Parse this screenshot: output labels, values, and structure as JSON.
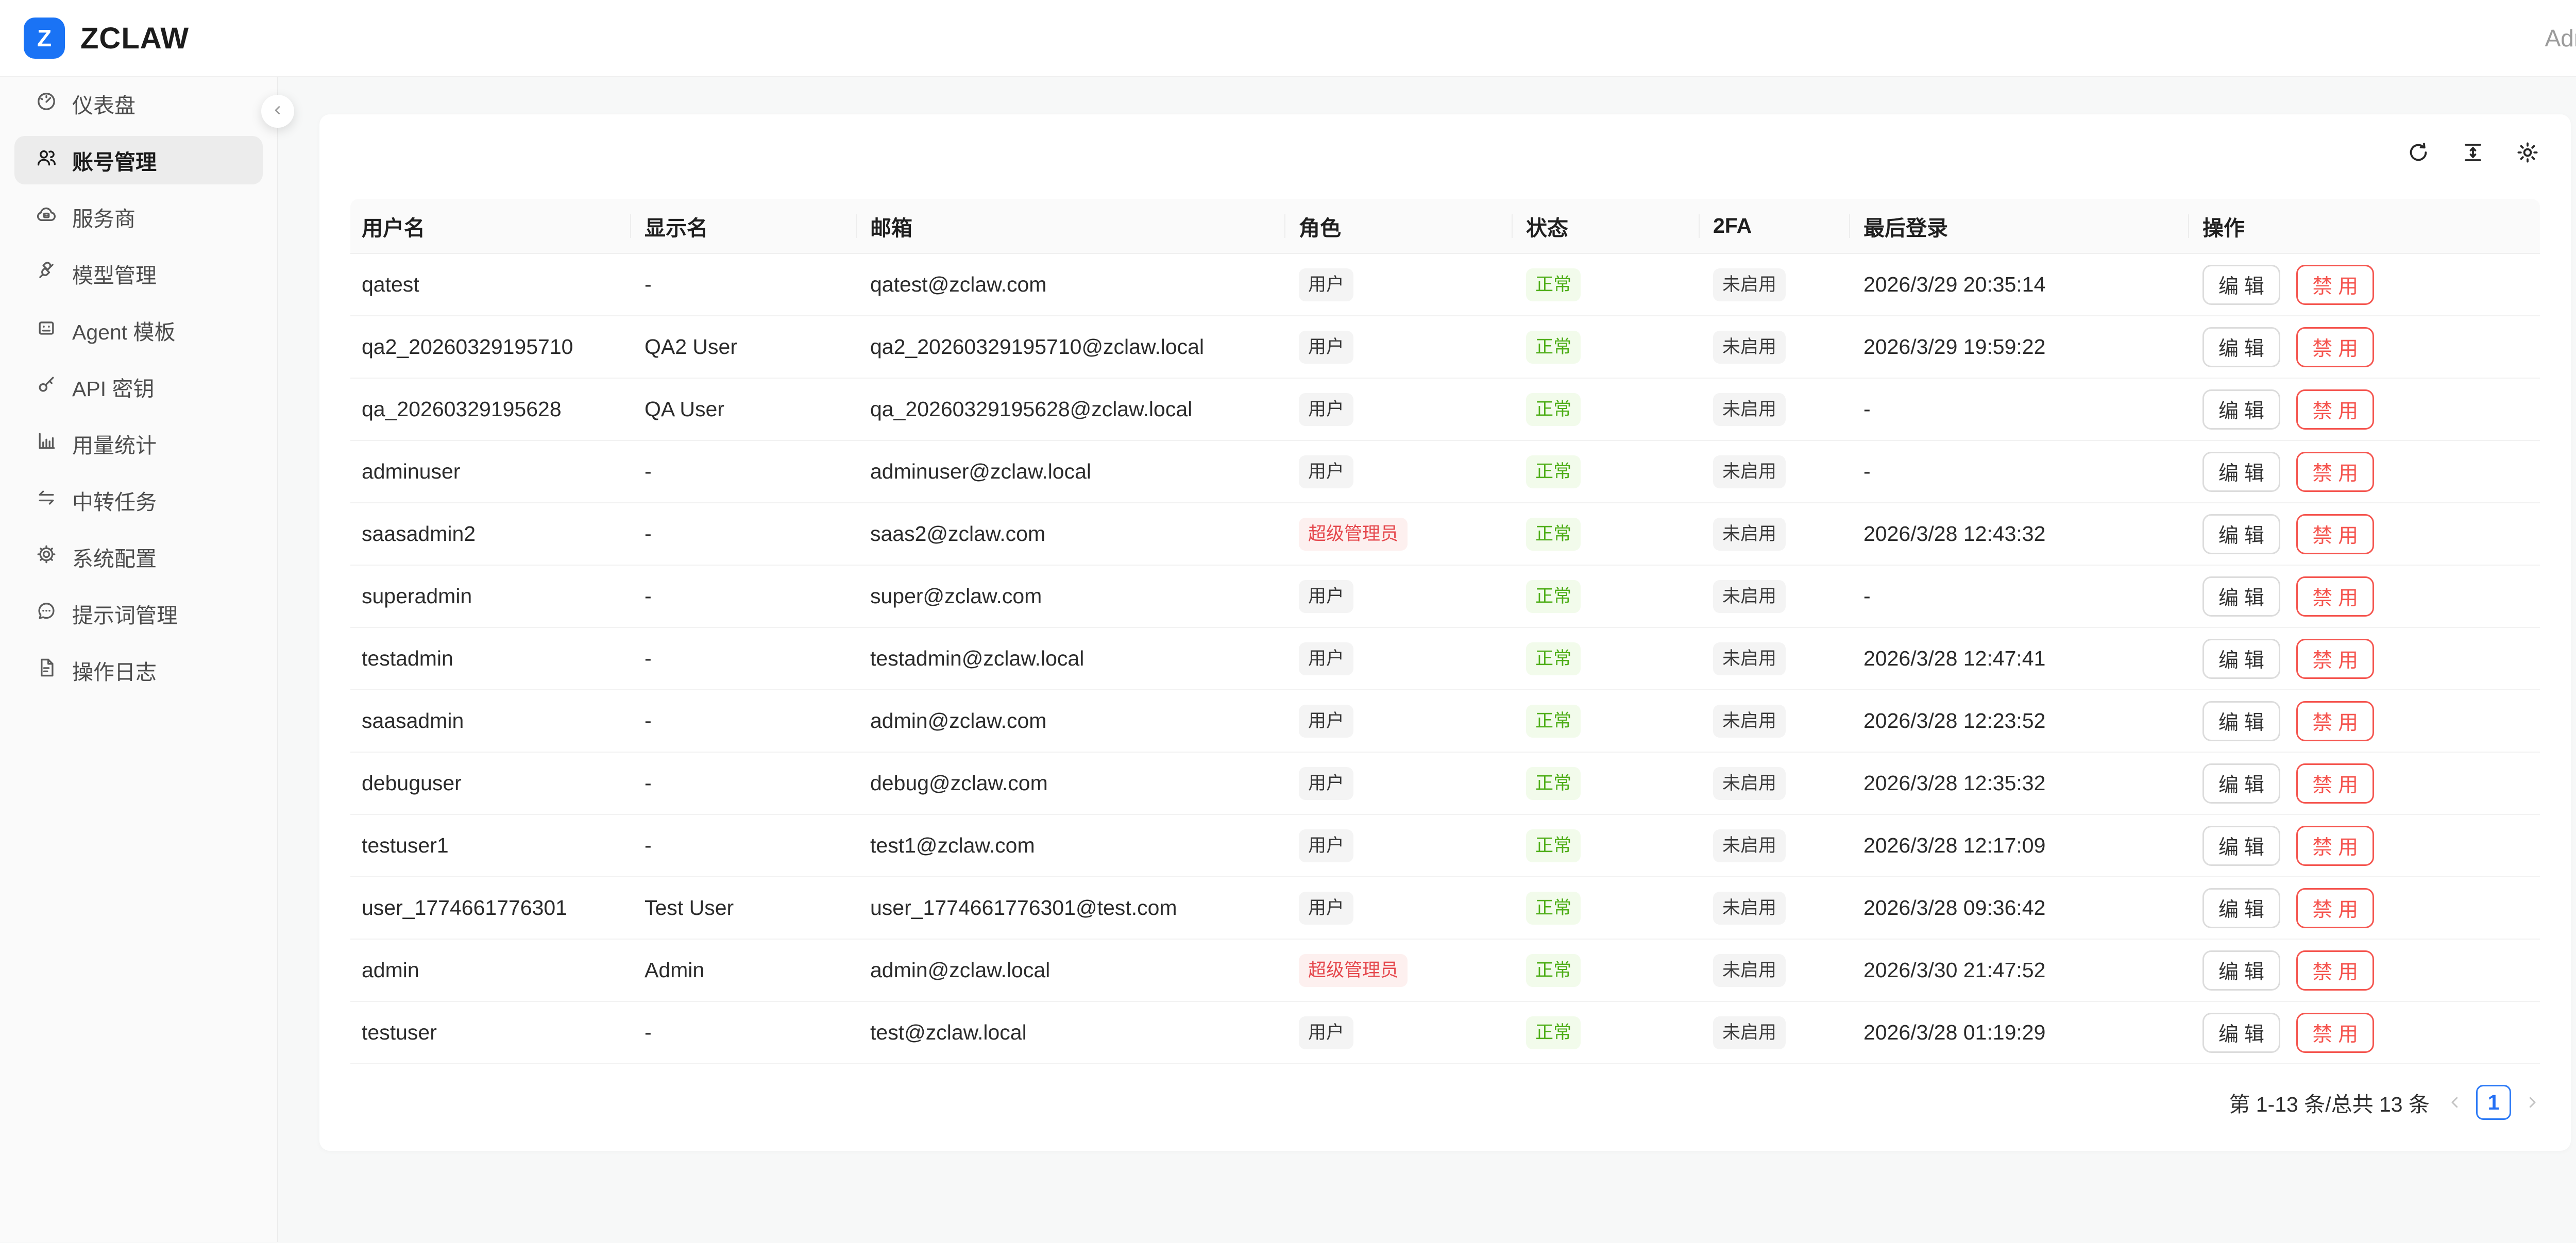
{
  "brand": {
    "logo_letter": "Z",
    "title": "ZCLAW"
  },
  "topbar": {
    "user_label": "Admin"
  },
  "sidebar": {
    "items": [
      {
        "label": "仪表盘",
        "icon": "dashboard-icon",
        "active": false
      },
      {
        "label": "账号管理",
        "icon": "users-icon",
        "active": true
      },
      {
        "label": "服务商",
        "icon": "cloud-icon",
        "active": false
      },
      {
        "label": "模型管理",
        "icon": "plug-icon",
        "active": false
      },
      {
        "label": "Agent 模板",
        "icon": "robot-icon",
        "active": false
      },
      {
        "label": "API 密钥",
        "icon": "key-icon",
        "active": false
      },
      {
        "label": "用量统计",
        "icon": "bar-chart-icon",
        "active": false
      },
      {
        "label": "中转任务",
        "icon": "swap-icon",
        "active": false
      },
      {
        "label": "系统配置",
        "icon": "gear-icon",
        "active": false
      },
      {
        "label": "提示词管理",
        "icon": "comment-icon",
        "active": false
      },
      {
        "label": "操作日志",
        "icon": "file-icon",
        "active": false
      }
    ]
  },
  "toolbar_icons": [
    "reload-icon",
    "density-icon",
    "settings-icon"
  ],
  "table": {
    "columns": [
      "用户名",
      "显示名",
      "邮箱",
      "角色",
      "状态",
      "2FA",
      "最后登录",
      "操作"
    ],
    "actions": {
      "edit": "编 辑",
      "disable": "禁 用"
    },
    "rows": [
      {
        "username": "qatest",
        "display": "-",
        "email": "qatest@zclaw.com",
        "role": "用户",
        "role_type": "user",
        "status": "正常",
        "tfa": "未启用",
        "last_login": "2026/3/29 20:35:14"
      },
      {
        "username": "qa2_20260329195710",
        "display": "QA2 User",
        "email": "qa2_20260329195710@zclaw.local",
        "role": "用户",
        "role_type": "user",
        "status": "正常",
        "tfa": "未启用",
        "last_login": "2026/3/29 19:59:22"
      },
      {
        "username": "qa_20260329195628",
        "display": "QA User",
        "email": "qa_20260329195628@zclaw.local",
        "role": "用户",
        "role_type": "user",
        "status": "正常",
        "tfa": "未启用",
        "last_login": "-"
      },
      {
        "username": "adminuser",
        "display": "-",
        "email": "adminuser@zclaw.local",
        "role": "用户",
        "role_type": "user",
        "status": "正常",
        "tfa": "未启用",
        "last_login": "-"
      },
      {
        "username": "saasadmin2",
        "display": "-",
        "email": "saas2@zclaw.com",
        "role": "超级管理员",
        "role_type": "superadmin",
        "status": "正常",
        "tfa": "未启用",
        "last_login": "2026/3/28 12:43:32"
      },
      {
        "username": "superadmin",
        "display": "-",
        "email": "super@zclaw.com",
        "role": "用户",
        "role_type": "user",
        "status": "正常",
        "tfa": "未启用",
        "last_login": "-"
      },
      {
        "username": "testadmin",
        "display": "-",
        "email": "testadmin@zclaw.local",
        "role": "用户",
        "role_type": "user",
        "status": "正常",
        "tfa": "未启用",
        "last_login": "2026/3/28 12:47:41"
      },
      {
        "username": "saasadmin",
        "display": "-",
        "email": "admin@zclaw.com",
        "role": "用户",
        "role_type": "user",
        "status": "正常",
        "tfa": "未启用",
        "last_login": "2026/3/28 12:23:52"
      },
      {
        "username": "debuguser",
        "display": "-",
        "email": "debug@zclaw.com",
        "role": "用户",
        "role_type": "user",
        "status": "正常",
        "tfa": "未启用",
        "last_login": "2026/3/28 12:35:32"
      },
      {
        "username": "testuser1",
        "display": "-",
        "email": "test1@zclaw.com",
        "role": "用户",
        "role_type": "user",
        "status": "正常",
        "tfa": "未启用",
        "last_login": "2026/3/28 12:17:09"
      },
      {
        "username": "user_1774661776301",
        "display": "Test User",
        "email": "user_1774661776301@test.com",
        "role": "用户",
        "role_type": "user",
        "status": "正常",
        "tfa": "未启用",
        "last_login": "2026/3/28 09:36:42"
      },
      {
        "username": "admin",
        "display": "Admin",
        "email": "admin@zclaw.local",
        "role": "超级管理员",
        "role_type": "superadmin",
        "status": "正常",
        "tfa": "未启用",
        "last_login": "2026/3/30 21:47:52"
      },
      {
        "username": "testuser",
        "display": "-",
        "email": "test@zclaw.local",
        "role": "用户",
        "role_type": "user",
        "status": "正常",
        "tfa": "未启用",
        "last_login": "2026/3/28 01:19:29"
      }
    ]
  },
  "pagination": {
    "summary": "第 1-13 条/总共 13 条",
    "page": "1"
  },
  "colors": {
    "brand_blue": "#1a73f5",
    "pager_blue": "#2470f5",
    "danger_red": "#f5554f",
    "role_red": "#e5484d",
    "status_green": "#4fae19"
  }
}
